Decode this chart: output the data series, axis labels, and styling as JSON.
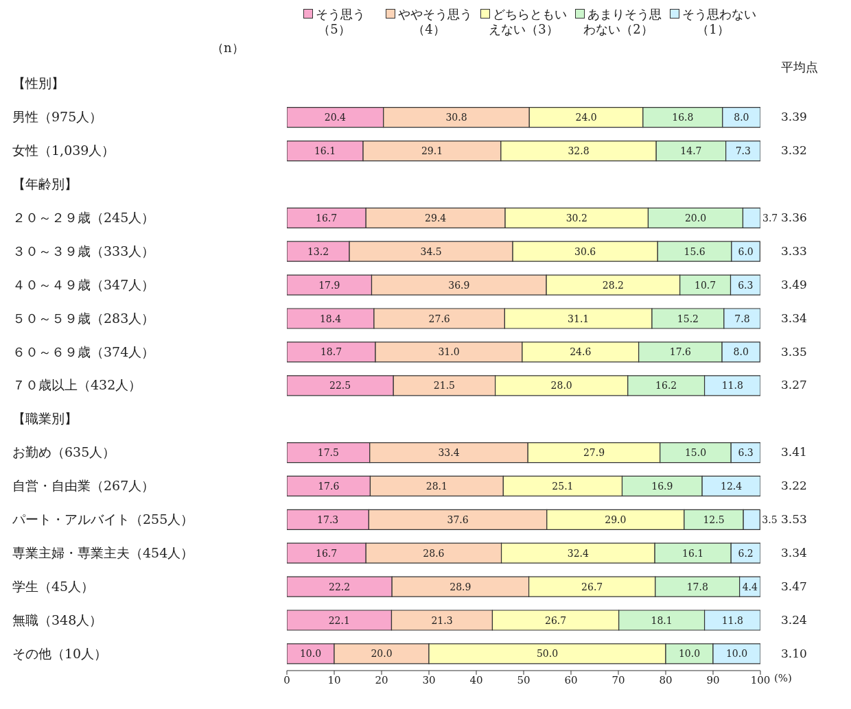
{
  "chart_data": {
    "type": "bar",
    "orientation": "horizontal",
    "stacked": true,
    "legend": "top",
    "xlabel": "(%)",
    "xlim": [
      0,
      100
    ],
    "xticks": [
      0,
      10,
      20,
      30,
      40,
      50,
      60,
      70,
      80,
      90,
      100
    ],
    "categories": [
      "【性別】",
      "男性（975人）",
      "女性（1,039人）",
      "【年齢別】",
      "２０～２９歳（245人）",
      "３０～３９歳（333人）",
      "４０～４９歳（347人）",
      "５０～５９歳（283人）",
      "６０～６９歳（374人）",
      "７０歳以上（432人）",
      "【職業別】",
      "お勤め（635人）",
      "自営・自由業（267人）",
      "パート・アルバイト（255人）",
      "専業主婦・専業主夫（454人）",
      "学生（45人）",
      "無職（348人）",
      "その他（10人）"
    ],
    "series": [
      {
        "name": "そう思う（5）",
        "color": "#f8a8cc",
        "values": [
          null,
          20.4,
          16.1,
          null,
          16.7,
          13.2,
          17.9,
          18.4,
          18.7,
          22.5,
          null,
          17.5,
          17.6,
          17.3,
          16.7,
          22.2,
          22.1,
          10.0
        ],
        "value_labels": [
          null,
          "20.4",
          "16.1",
          null,
          "16.7",
          "13.2",
          "17.9",
          "18.4",
          "18.7",
          "22.5",
          null,
          "17.5",
          "17.6",
          "17.3",
          "16.7",
          "22.2",
          "22.1",
          "10.0"
        ]
      },
      {
        "name": "ややそう思う（4）",
        "color": "#fcd4b8",
        "values": [
          null,
          30.8,
          29.1,
          null,
          29.4,
          34.5,
          36.9,
          27.6,
          31.0,
          21.5,
          null,
          33.4,
          28.1,
          37.6,
          28.6,
          28.9,
          21.3,
          20.0
        ],
        "value_labels": [
          null,
          "30.8",
          "29.1",
          null,
          "29.4",
          "34.5",
          "36.9",
          "27.6",
          "31.0",
          "21.5",
          null,
          "33.4",
          "28.1",
          "37.6",
          "28.6",
          "28.9",
          "21.3",
          "20.0"
        ]
      },
      {
        "name": "どちらともいえない（3）",
        "color": "#ffffb8",
        "values": [
          null,
          24.0,
          32.8,
          null,
          30.2,
          30.6,
          28.2,
          31.1,
          24.6,
          28.0,
          null,
          27.9,
          25.1,
          29.0,
          32.4,
          26.7,
          26.7,
          50.0
        ],
        "value_labels": [
          null,
          "24.0",
          "32.8",
          null,
          "30.2",
          "30.6",
          "28.2",
          "31.1",
          "24.6",
          "28.0",
          null,
          "27.9",
          "25.1",
          "29.0",
          "32.4",
          "26.7",
          "26.7",
          "50.0"
        ]
      },
      {
        "name": "あまりそう思わない（2）",
        "color": "#ccf5cc",
        "values": [
          null,
          16.8,
          14.7,
          null,
          20.0,
          15.6,
          10.7,
          15.2,
          17.6,
          16.2,
          null,
          15.0,
          16.9,
          12.5,
          16.1,
          17.8,
          18.1,
          10.0
        ],
        "value_labels": [
          null,
          "16.8",
          "14.7",
          null,
          "20.0",
          "15.6",
          "10.7",
          "15.2",
          "17.6",
          "16.2",
          null,
          "15.0",
          "16.9",
          "12.5",
          "16.1",
          "17.8",
          "18.1",
          "10.0"
        ]
      },
      {
        "name": "そう思わない（1）",
        "color": "#ccf0ff",
        "values": [
          null,
          8.0,
          7.3,
          null,
          3.7,
          6.0,
          6.3,
          7.8,
          8.0,
          11.8,
          null,
          6.3,
          12.4,
          3.5,
          6.2,
          4.4,
          11.8,
          10.0
        ],
        "value_labels": [
          null,
          "8.0",
          "7.3",
          null,
          "3.7",
          "6.0",
          "6.3",
          "7.8",
          "8.0",
          "11.8",
          null,
          "6.3",
          "12.4",
          "3.5",
          "6.2",
          "4.4",
          "11.8",
          "10.0"
        ]
      }
    ],
    "annotations": [
      "（n）",
      "平均点",
      "3.39",
      "3.32",
      "3.36",
      "3.33",
      "3.49",
      "3.34",
      "3.35",
      "3.27",
      "3.41",
      "3.22",
      "3.53",
      "3.34",
      "3.47",
      "3.24",
      "3.10"
    ]
  }
}
